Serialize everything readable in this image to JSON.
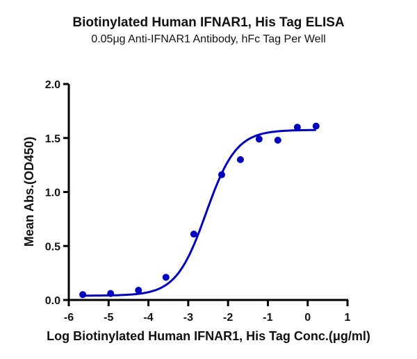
{
  "chart_data": {
    "type": "scatter",
    "title": "Biotinylated Human IFNAR1, His Tag ELISA",
    "subtitle": "0.05μg Anti-IFNAR1 Antibody, hFc Tag Per Well",
    "xlabel": "Log Biotinylated Human IFNAR1, His Tag Conc.(μg/ml)",
    "ylabel": "Mean Abs.(OD450)",
    "xlim": [
      -6,
      1
    ],
    "ylim": [
      0,
      2.0
    ],
    "xticks": [
      "-6",
      "-5",
      "-4",
      "-3",
      "-2",
      "-1",
      "0",
      "1"
    ],
    "yticks": [
      "0.0",
      "0.5",
      "1.0",
      "1.5",
      "2.0"
    ],
    "grid": false,
    "legend": null,
    "series": [
      {
        "name": "Mean Abs.(OD450)",
        "color": "#0000C0",
        "fit": "4-parameter logistic curve",
        "x": [
          -5.65,
          -4.95,
          -4.25,
          -3.56,
          -2.86,
          -2.16,
          -1.69,
          -1.22,
          -0.75,
          -0.26,
          0.21
        ],
        "y": [
          0.05,
          0.06,
          0.09,
          0.21,
          0.61,
          1.16,
          1.3,
          1.49,
          1.48,
          1.6,
          1.61
        ]
      }
    ]
  }
}
